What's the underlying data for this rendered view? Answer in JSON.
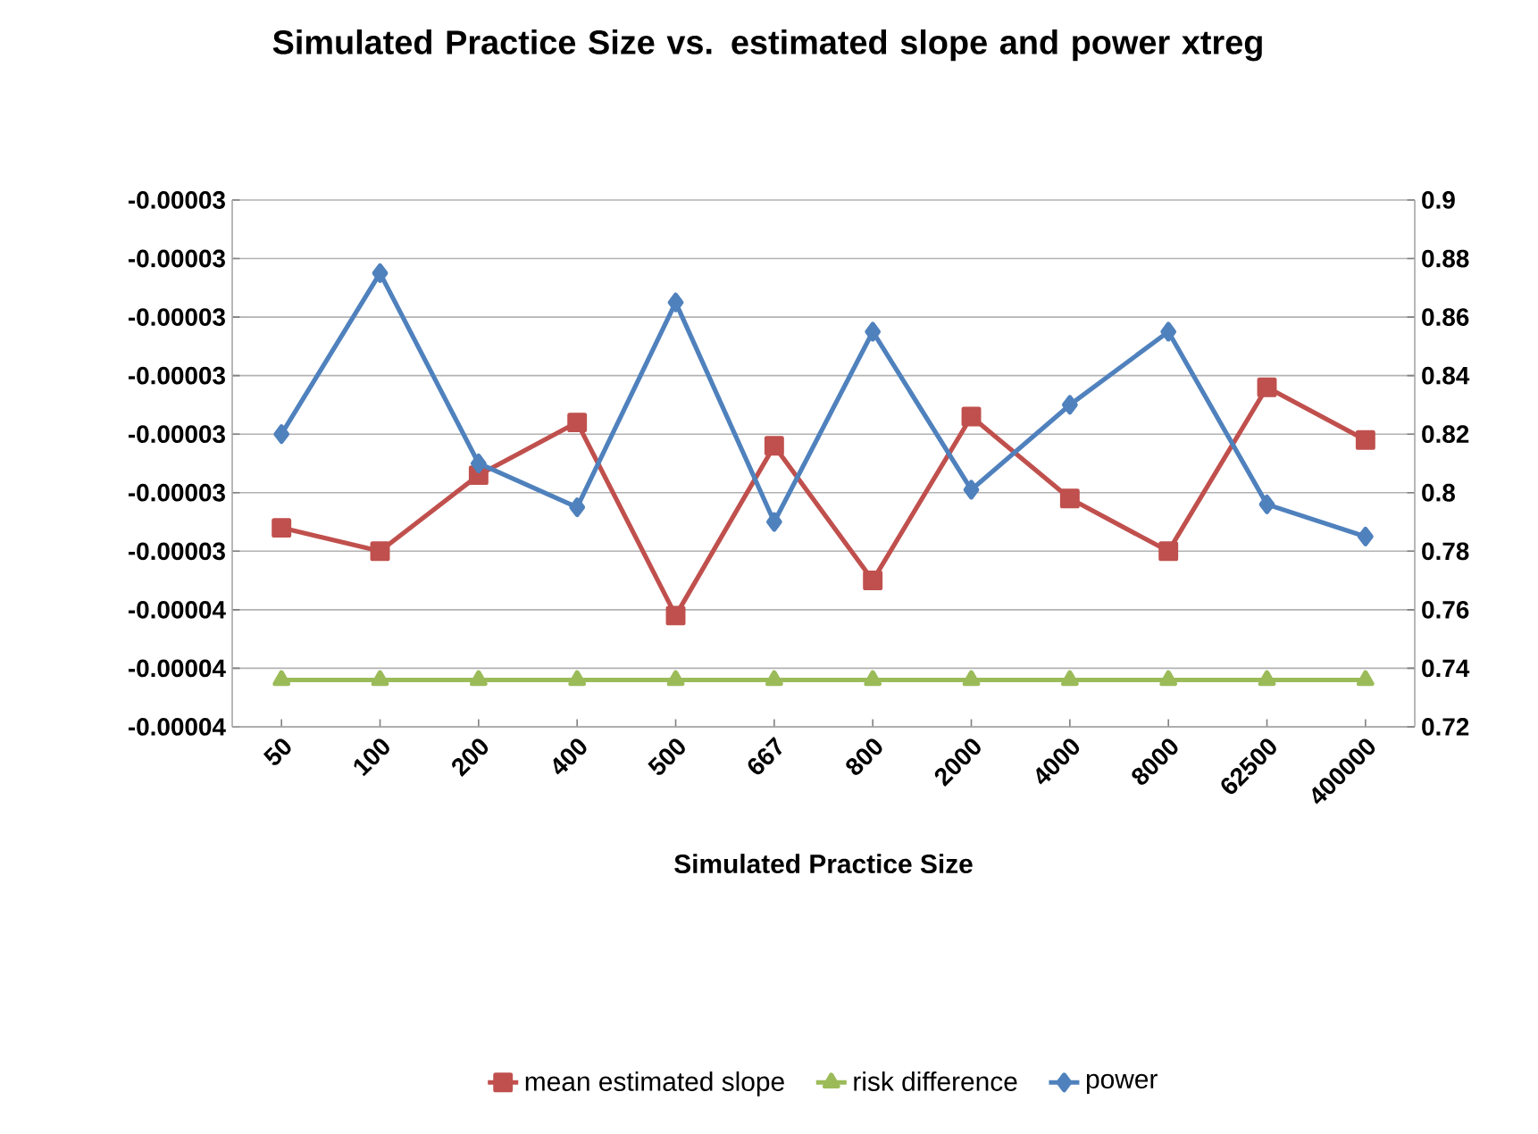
{
  "chart_data": {
    "type": "line",
    "title": "Simulated Practice Size vs. estimated slope and power xtreg",
    "xlabel": "Simulated Practice Size",
    "categories": [
      "50",
      "100",
      "200",
      "400",
      "500",
      "667",
      "800",
      "2000",
      "4000",
      "8000",
      "62500",
      "400000"
    ],
    "series": [
      {
        "name": "mean estimated slope",
        "color": "#c0504d",
        "marker": "square",
        "values": [
          -3.36e-05,
          -3.4e-05,
          -3.27e-05,
          -3.18e-05,
          -3.51e-05,
          -3.22e-05,
          -3.45e-05,
          -3.17e-05,
          -3.31e-05,
          -3.4e-05,
          -3.12e-05,
          -3.21e-05
        ]
      },
      {
        "name": "risk difference",
        "color": "#9bbb59",
        "marker": "triangle",
        "values": [
          -3.62e-05,
          -3.62e-05,
          -3.62e-05,
          -3.62e-05,
          -3.62e-05,
          -3.62e-05,
          -3.62e-05,
          -3.62e-05,
          -3.62e-05,
          -3.62e-05,
          -3.62e-05,
          -3.62e-05
        ]
      },
      {
        "name": "power",
        "color": "#4f81bd",
        "marker": "diamond",
        "axis": "y2",
        "values": [
          0.82,
          0.875,
          0.81,
          0.795,
          0.865,
          0.79,
          0.855,
          0.801,
          0.83,
          0.855,
          0.796,
          0.785
        ]
      }
    ],
    "ylim": [
      -3.7e-05,
      -2.8e-05
    ],
    "yticks": [
      {
        "value": -3.7e-05,
        "label": "-0.00004"
      },
      {
        "value": -3.6e-05,
        "label": "-0.00004"
      },
      {
        "value": -3.5e-05,
        "label": "-0.00004"
      },
      {
        "value": -3.4e-05,
        "label": "-0.00003"
      },
      {
        "value": -3.3e-05,
        "label": "-0.00003"
      },
      {
        "value": -3.2e-05,
        "label": "-0.00003"
      },
      {
        "value": -3.1e-05,
        "label": "-0.00003"
      },
      {
        "value": -3e-05,
        "label": "-0.00003"
      },
      {
        "value": -2.9e-05,
        "label": "-0.00003"
      },
      {
        "value": -2.8e-05,
        "label": "-0.00003"
      }
    ],
    "y2lim": [
      0.72,
      0.9
    ],
    "y2ticks": [
      0.72,
      0.74,
      0.76,
      0.78,
      0.8,
      0.82,
      0.84,
      0.86,
      0.88,
      0.9
    ],
    "grid": "y",
    "legend": "bottom",
    "line_style": "solid"
  }
}
